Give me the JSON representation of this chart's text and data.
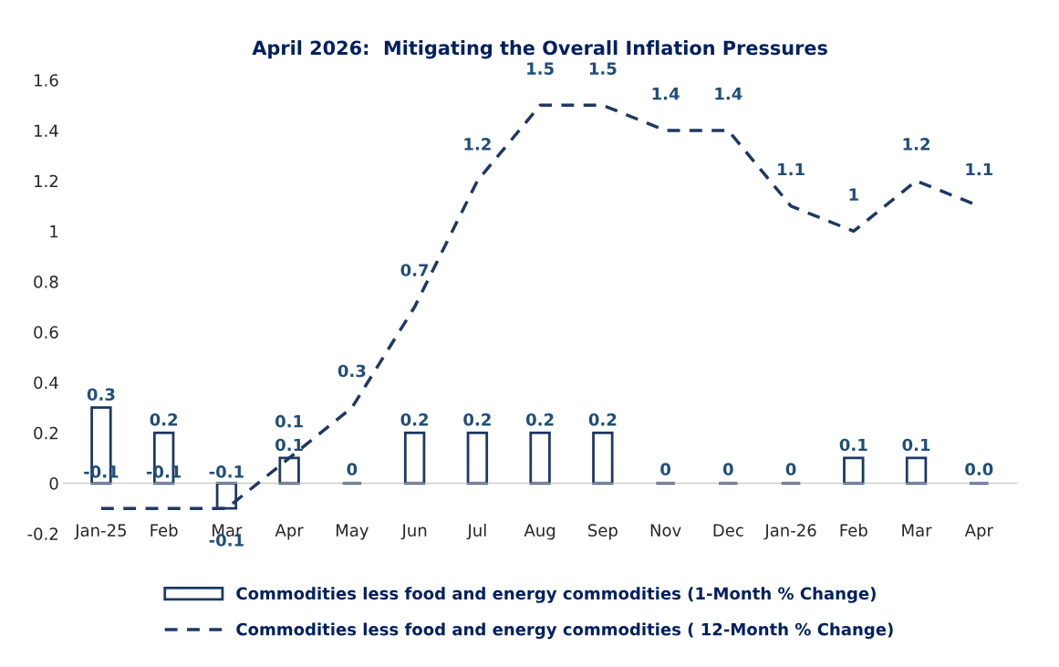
{
  "chart_data": {
    "type": "bar",
    "title": "April 2026:  Mitigating the Overall Inflation Pressures",
    "categories": [
      "Jan-25",
      "Feb",
      "Mar",
      "Apr",
      "May",
      "Jun",
      "Jul",
      "Aug",
      "Sep",
      "Nov",
      "Dec",
      "Jan-26",
      "Feb",
      "Mar",
      "Apr"
    ],
    "series": [
      {
        "name": "Commodities less food and energy commodities (1-Month % Change)",
        "color": "#1f3864",
        "values": [
          0.3,
          0.2,
          -0.1,
          0.1,
          0,
          0.2,
          0.2,
          0.2,
          0.2,
          0,
          0,
          0,
          0.1,
          0.1,
          0.0
        ],
        "value_labels": [
          "0.3",
          "0.2",
          "-0.1",
          "0.1",
          "0",
          "0.2",
          "0.2",
          "0.2",
          "0.2",
          "0",
          "0",
          "0",
          "0.1",
          "0.1",
          "0.0"
        ]
      },
      {
        "type": "line",
        "name": "Commodities less food and energy commodities ( 12-Month % Change)",
        "color": "#1f3864",
        "line_style": "dashed",
        "values": [
          -0.1,
          -0.1,
          -0.1,
          0.1,
          0.3,
          0.7,
          1.2,
          1.5,
          1.5,
          1.4,
          1.4,
          1.1,
          1,
          1.2,
          1.1
        ],
        "value_labels": [
          "-0.1",
          "-0.1",
          "-0.1",
          "0.1",
          "0.3",
          "0.7",
          "1.2",
          "1.5",
          "1.5",
          "1.4",
          "1.4",
          "1.1",
          "1",
          "1.2",
          "1.1"
        ]
      }
    ],
    "ylim": [
      -0.2,
      1.6
    ],
    "yticks": [
      -0.2,
      0,
      0.2,
      0.4,
      0.6,
      0.8,
      1,
      1.2,
      1.4,
      1.6
    ],
    "grid": false,
    "legend": "bottom"
  }
}
